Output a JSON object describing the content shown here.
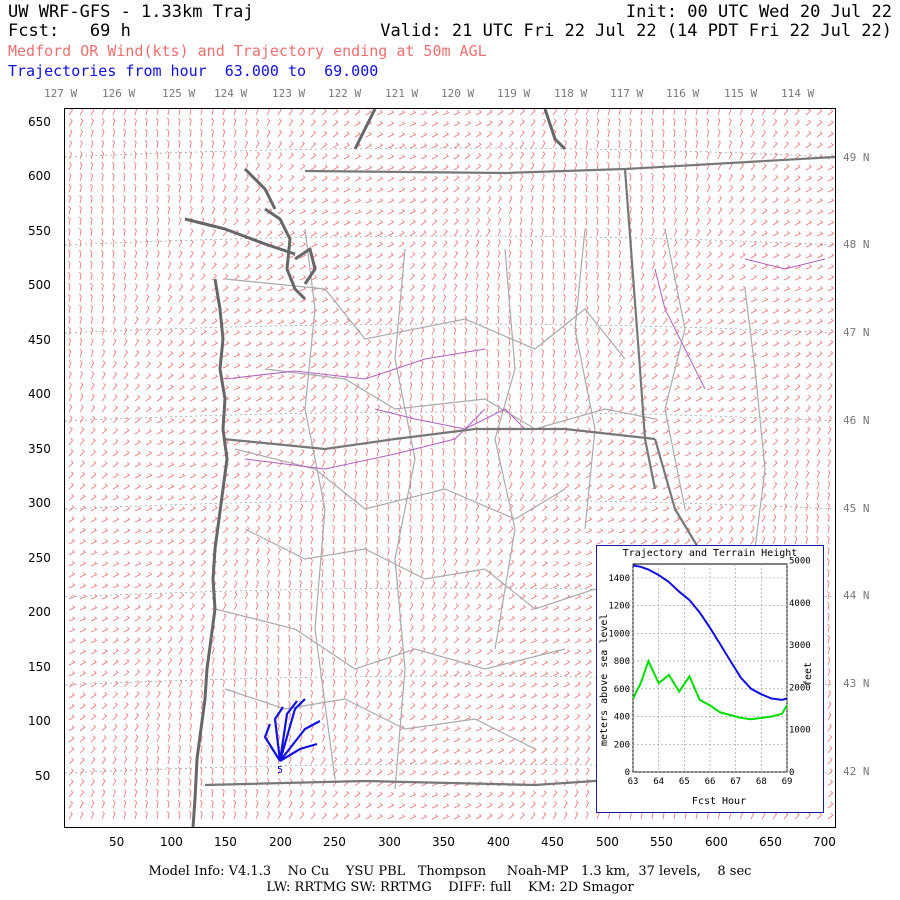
{
  "header": {
    "title_left": "UW WRF-GFS - 1.33km Traj",
    "init": "Init: 00 UTC Wed 20 Jul 22",
    "fcst": "Fcst:   69 h",
    "valid": "Valid: 21 UTC Fri 22 Jul 22 (14 PDT Fri 22 Jul 22)",
    "subtitle": "Medford OR Wind(kts) and Trajectory ending at 50m AGL",
    "traj_range": "Trajectories from hour  63.000 to  69.000"
  },
  "lon_labels": [
    "127 W",
    "126 W",
    "125 W",
    "124 W",
    "123 W",
    "122 W",
    "121 W",
    "120 W",
    "119 W",
    "118 W",
    "117 W",
    "116 W",
    "115 W",
    "114 W"
  ],
  "lat_labels": [
    "49 N",
    "48 N",
    "47 N",
    "46 N",
    "45 N",
    "44 N",
    "43 N",
    "42 N"
  ],
  "y_ticks": [
    "650",
    "600",
    "550",
    "500",
    "450",
    "400",
    "350",
    "300",
    "250",
    "200",
    "150",
    "100",
    "50"
  ],
  "x_ticks": [
    "50",
    "100",
    "150",
    "200",
    "250",
    "300",
    "350",
    "400",
    "450",
    "500",
    "550",
    "600",
    "650",
    "700"
  ],
  "colors": {
    "wind_barbs": "#f07070",
    "coastline": "#666666",
    "state_border": "#777777",
    "county_border": "#aaaaaa",
    "rivers": "#b060c0",
    "trajectory": "#1010e0",
    "terrain": "#00dd00"
  },
  "trajectory": {
    "end_label": "5"
  },
  "inset": {
    "title": "Trajectory and Terrain Height",
    "ylabel_left": "meters above sea level",
    "ylabel_right": "feet",
    "xlabel": "Fcst Hour",
    "left_ticks": [
      "1400",
      "1200",
      "1000",
      "800",
      "600",
      "400",
      "200",
      "0"
    ],
    "right_ticks": [
      "5000",
      "4000",
      "3000",
      "2000",
      "1000",
      "0"
    ],
    "x_ticks": [
      "63",
      "64",
      "65",
      "66",
      "67",
      "68",
      "69"
    ],
    "chart_data": {
      "type": "line",
      "x": [
        63,
        63.3,
        63.6,
        64,
        64.4,
        64.8,
        65.2,
        65.6,
        66,
        66.4,
        66.8,
        67.2,
        67.6,
        68,
        68.4,
        68.8,
        69
      ],
      "xlim": [
        63,
        69
      ],
      "ylim": [
        0,
        1500
      ],
      "series": [
        {
          "name": "trajectory",
          "values": [
            1490,
            1480,
            1460,
            1420,
            1370,
            1300,
            1240,
            1150,
            1040,
            920,
            800,
            680,
            600,
            560,
            530,
            520,
            530
          ]
        },
        {
          "name": "terrain",
          "values": [
            530,
            640,
            800,
            640,
            700,
            580,
            690,
            520,
            480,
            430,
            410,
            390,
            380,
            390,
            400,
            420,
            480
          ]
        }
      ]
    }
  },
  "footer": {
    "line1": "Model Info: V4.1.3    No Cu    YSU PBL   Thompson     Noah-MP   1.3 km,  37 levels,    8 sec",
    "line2": "LW: RRTMG SW: RRTMG    DIFF: full    KM: 2D Smagor"
  }
}
